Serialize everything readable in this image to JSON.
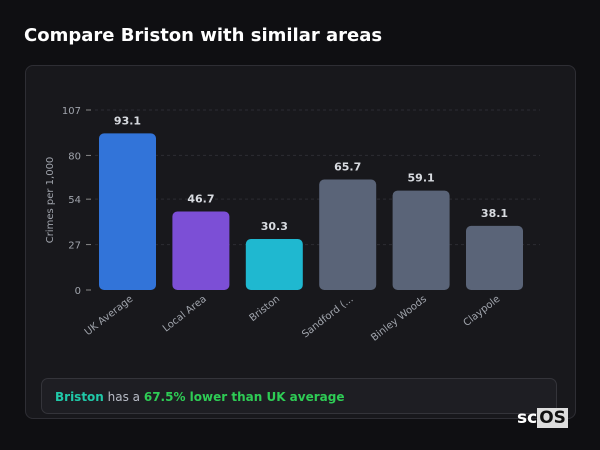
{
  "title": "Compare Briston with similar areas",
  "chart_data": {
    "type": "bar",
    "categories": [
      "UK Average",
      "Local Area",
      "Briston",
      "Sandford (...",
      "Binley Woods",
      "Claypole"
    ],
    "values": [
      93.1,
      46.7,
      30.3,
      65.7,
      59.1,
      38.1
    ],
    "colors": [
      "#3274d9",
      "#7c4fd6",
      "#1fb8d0",
      "#5a6478",
      "#5a6478",
      "#5a6478"
    ],
    "ylabel": "Crimes per 1,000",
    "yticks": [
      0,
      27,
      54,
      80,
      107
    ],
    "ylim": [
      0,
      107
    ],
    "grid": true
  },
  "footer": {
    "area": "Briston",
    "middle": " has a ",
    "highlight": "67.5% lower than UK average",
    "area_color": "#20c9a8",
    "highlight_color": "#2ecc55"
  },
  "logo": {
    "prefix": "sc",
    "boxed": "OS"
  }
}
